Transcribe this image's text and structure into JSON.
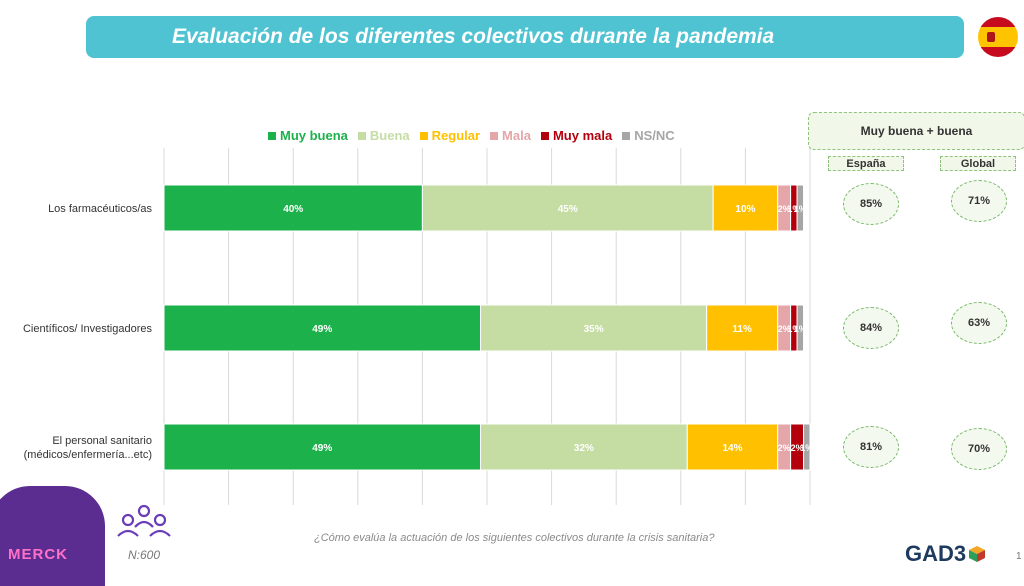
{
  "title": "Evaluación de los diferentes colectivos durante la pandemia",
  "chart_data": {
    "type": "bar",
    "orientation": "horizontal",
    "stacked": true,
    "categories": [
      "Los farmacéuticos/as",
      "Científicos/ Investigadores",
      "El personal sanitario (médicos/enfermería...etc)"
    ],
    "series": [
      {
        "name": "Muy buena",
        "color": "#1db14b",
        "values": [
          40,
          49,
          49
        ]
      },
      {
        "name": "Buena",
        "color": "#c5dda3",
        "values": [
          45,
          35,
          32
        ]
      },
      {
        "name": "Regular",
        "color": "#ffc000",
        "values": [
          10,
          11,
          14
        ]
      },
      {
        "name": "Mala",
        "color": "#e5a6a9",
        "values": [
          2,
          2,
          2
        ]
      },
      {
        "name": "Muy mala",
        "color": "#b3000c",
        "values": [
          1,
          1,
          2
        ]
      },
      {
        "name": "NS/NC",
        "color": "#a6a6a6",
        "values": [
          1,
          1,
          1
        ]
      }
    ],
    "data_labels": [
      [
        "40%",
        "45%",
        "10%",
        "2%",
        "1%",
        "1%"
      ],
      [
        "49%",
        "35%",
        "11%",
        "2%",
        "1%",
        "1%"
      ],
      [
        "49%",
        "32%",
        "14%",
        "2%",
        "2%",
        "1%"
      ]
    ],
    "xlim": [
      0,
      100
    ],
    "grid": true,
    "legend": "top"
  },
  "summary": {
    "header": "Muy buena + buena",
    "col_espana": "España",
    "col_global": "Global",
    "espana": [
      "85%",
      "84%",
      "81%"
    ],
    "global": [
      "71%",
      "63%",
      "70%"
    ]
  },
  "footer": {
    "question": "¿Cómo evalúa la actuación de los siguientes colectivos durante la crisis sanitaria?",
    "n": "N:600",
    "logo_left": "MERCK",
    "logo_right": "GAD3",
    "page": "1"
  }
}
